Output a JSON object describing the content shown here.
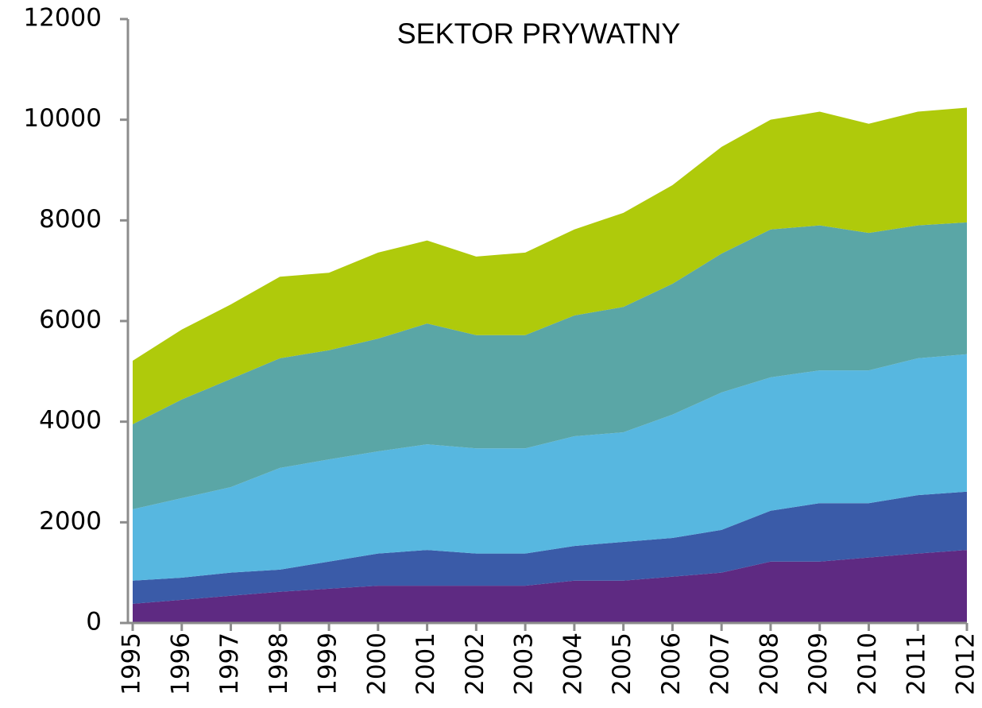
{
  "chart_data": {
    "type": "stacked_area",
    "title": "SEKTOR PRYWATNY",
    "categories": [
      "1995",
      "1996",
      "1997",
      "1998",
      "1999",
      "2000",
      "2001",
      "2002",
      "2003",
      "2004",
      "2005",
      "2006",
      "2007",
      "2008",
      "2009",
      "2010",
      "2011",
      "2012"
    ],
    "series": [
      {
        "color": "#5e2a82",
        "values": [
          380,
          460,
          540,
          620,
          680,
          740,
          740,
          740,
          740,
          840,
          840,
          920,
          1000,
          1220,
          1220,
          1300,
          1380,
          1450
        ]
      },
      {
        "color": "#3a5ba8",
        "values": [
          460,
          440,
          460,
          440,
          540,
          640,
          710,
          640,
          640,
          690,
          770,
          770,
          850,
          1010,
          1160,
          1080,
          1160,
          1160
        ]
      },
      {
        "color": "#57b7e0",
        "values": [
          1420,
          1580,
          1700,
          2020,
          2030,
          2030,
          2100,
          2090,
          2090,
          2180,
          2180,
          2450,
          2730,
          2650,
          2640,
          2640,
          2720,
          2730
        ]
      },
      {
        "color": "#5aa6a6",
        "values": [
          1690,
          1960,
          2150,
          2180,
          2170,
          2240,
          2400,
          2250,
          2250,
          2400,
          2490,
          2600,
          2760,
          2940,
          2880,
          2730,
          2640,
          2620
        ]
      },
      {
        "color": "#afca0b",
        "values": [
          1260,
          1390,
          1480,
          1620,
          1540,
          1710,
          1650,
          1560,
          1640,
          1710,
          1870,
          1960,
          2120,
          2180,
          2260,
          2170,
          2260,
          2280
        ]
      }
    ],
    "ylim": [
      0,
      12000
    ],
    "yticks": [
      0,
      2000,
      4000,
      6000,
      8000,
      10000,
      12000
    ],
    "grid": false
  }
}
